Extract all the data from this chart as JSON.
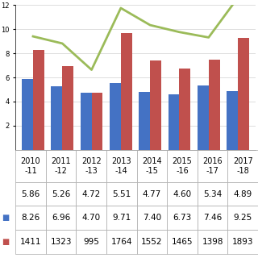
{
  "years": [
    "2010\n-11",
    "2011\n-12",
    "2012\n-13",
    "2013\n-14",
    "2014\n-15",
    "2015\n-16",
    "2016\n-17",
    "2017\n-18"
  ],
  "area": [
    5.86,
    5.26,
    4.72,
    5.51,
    4.77,
    4.6,
    5.34,
    4.89
  ],
  "production": [
    8.26,
    6.96,
    4.7,
    9.71,
    7.4,
    6.73,
    7.46,
    9.25
  ],
  "yield": [
    1411,
    1323,
    995,
    1764,
    1552,
    1465,
    1398,
    1893
  ],
  "bar_color_area": "#4472C4",
  "bar_color_production": "#C0504D",
  "line_color": "#9BBB59",
  "table_row1": [
    "5.86",
    "5.26",
    "4.72",
    "5.51",
    "4.77",
    "4.60",
    "5.34",
    "4.89"
  ],
  "table_row2": [
    "8.26",
    "6.96",
    "4.70",
    "9.71",
    "7.40",
    "6.73",
    "7.46",
    "9.25"
  ],
  "table_row3": [
    "1411",
    "1323",
    "995",
    "1764",
    "1552",
    "1465",
    "1398",
    "1893"
  ],
  "ylim": [
    0,
    12
  ],
  "yield_scale": 150,
  "background_color": "#ffffff",
  "grid_color": "#d0d0d0"
}
